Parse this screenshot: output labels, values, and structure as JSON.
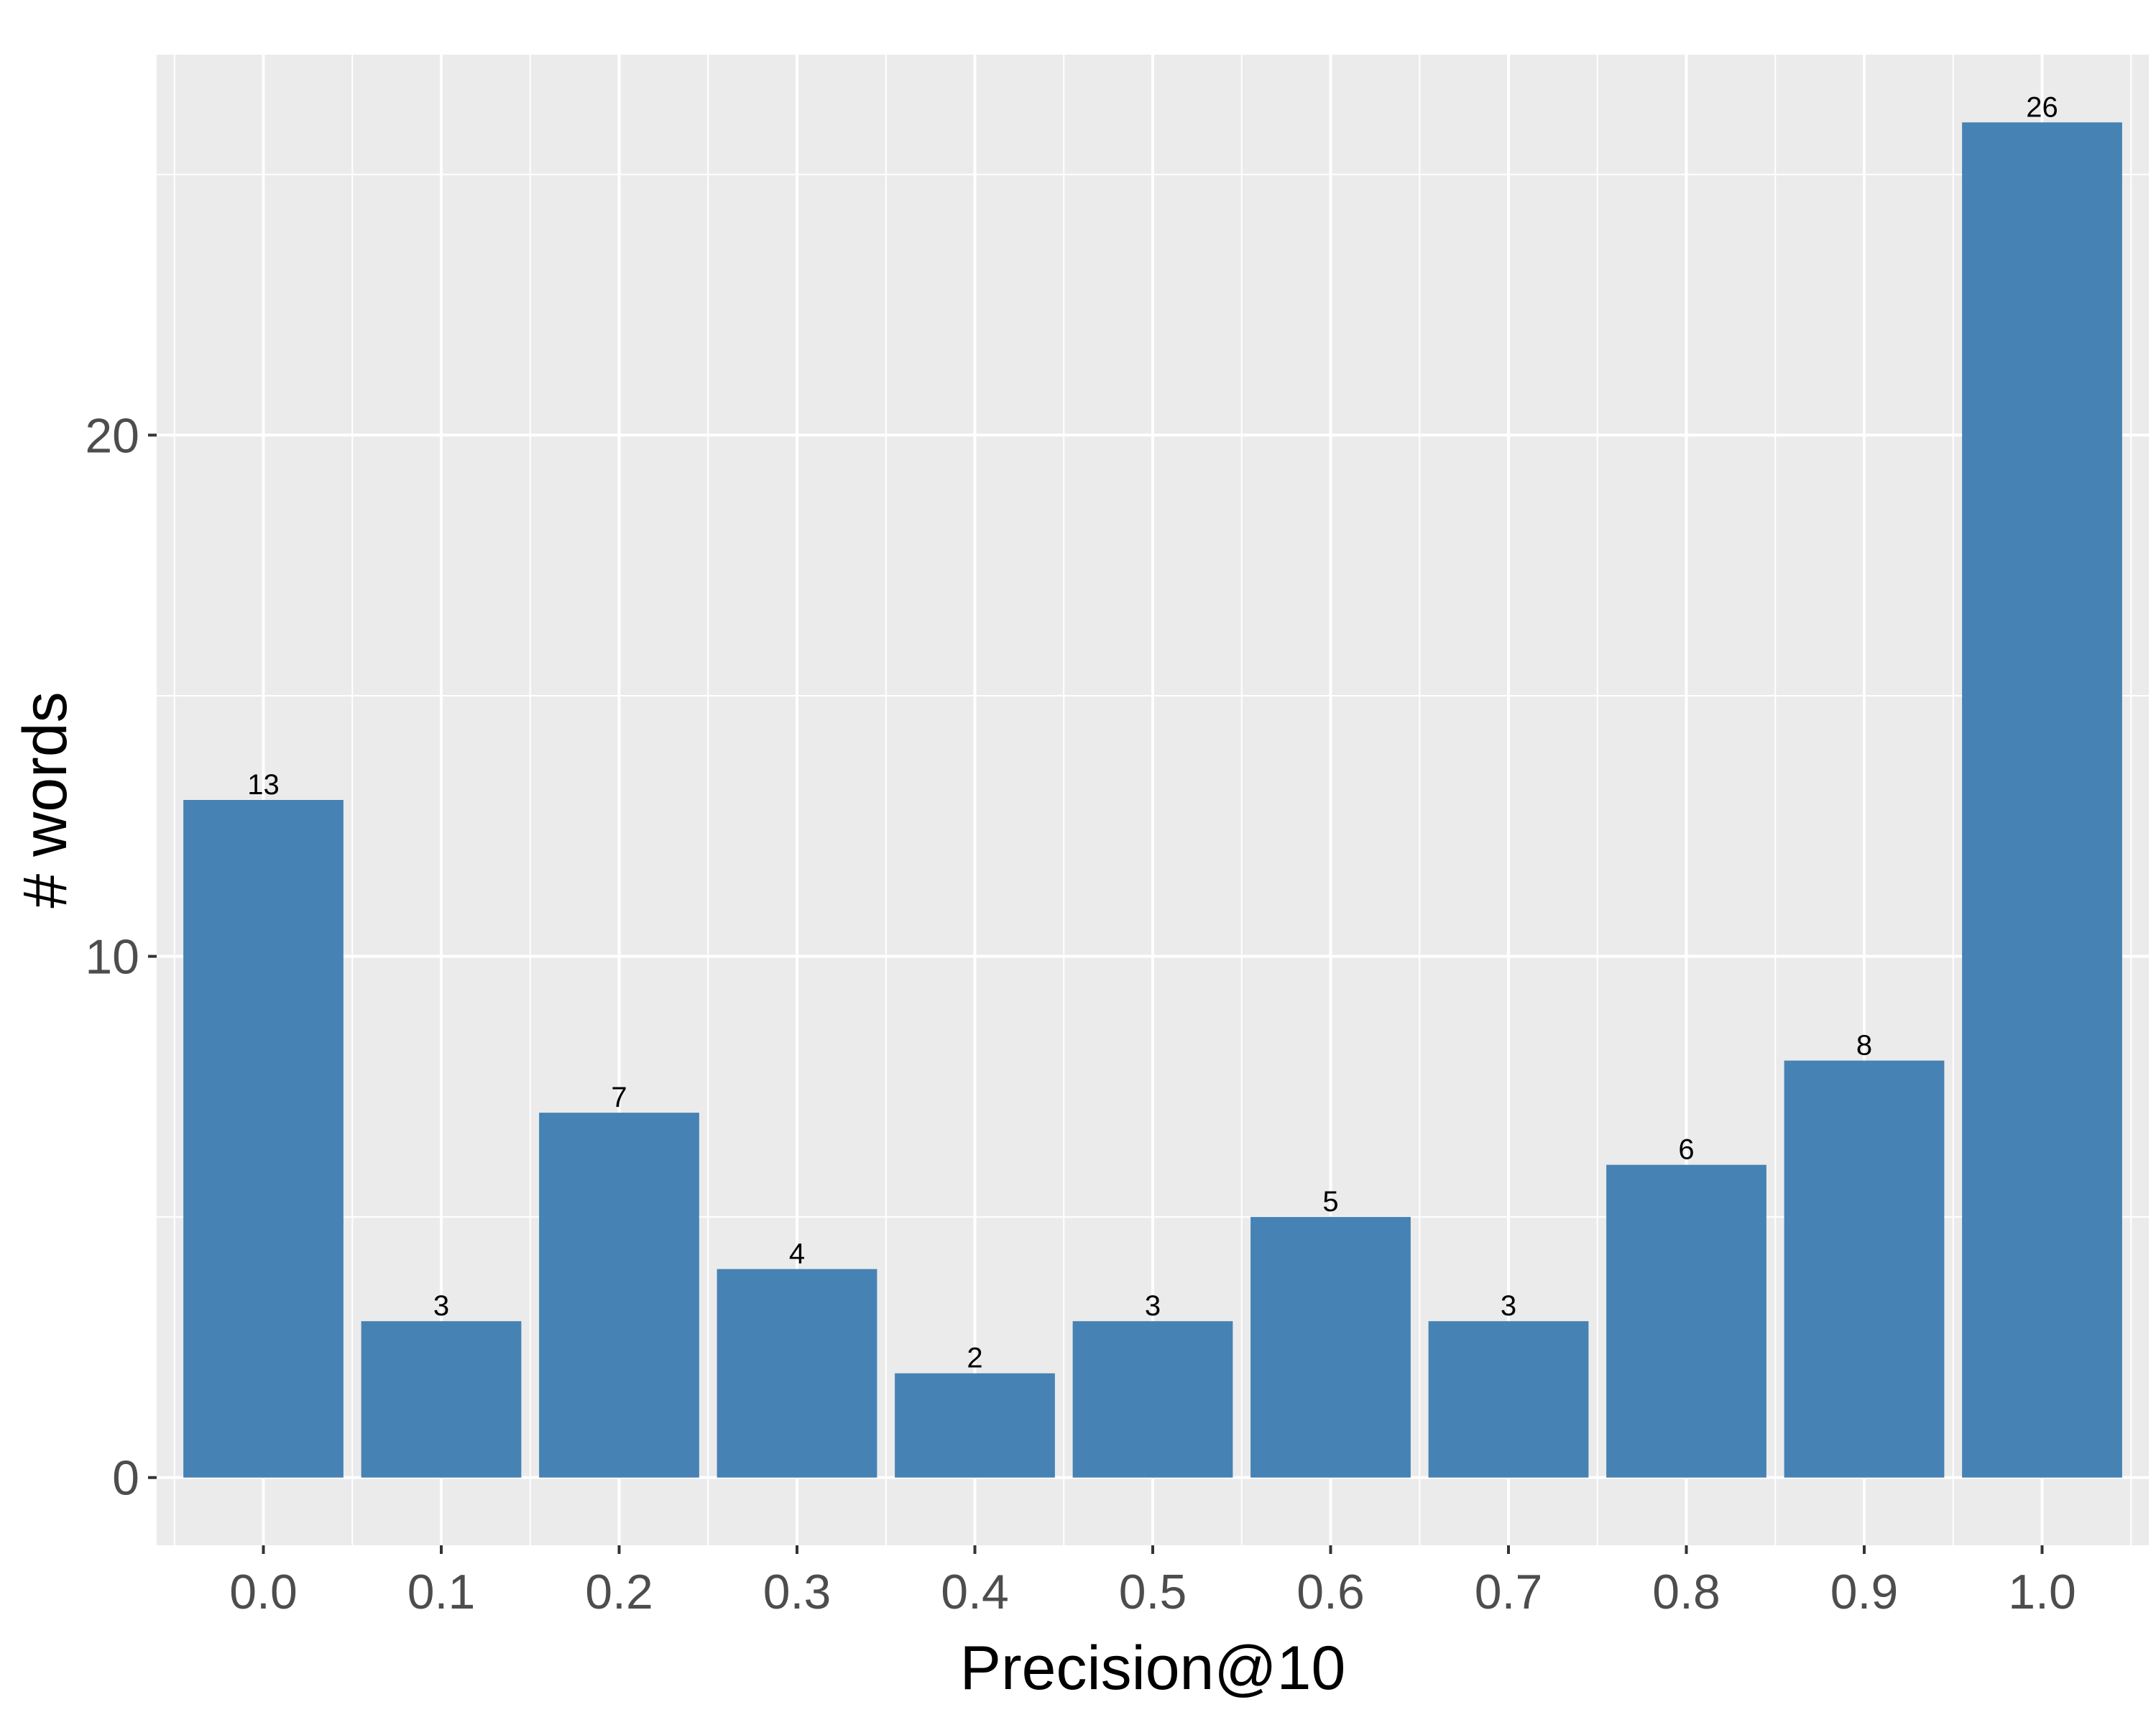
{
  "chart_data": {
    "type": "bar",
    "title": "",
    "xlabel": "Precision@10",
    "ylabel": "# words",
    "categories": [
      "0.0",
      "0.1",
      "0.2",
      "0.3",
      "0.4",
      "0.5",
      "0.6",
      "0.7",
      "0.8",
      "0.9",
      "1.0"
    ],
    "values": [
      13,
      3,
      7,
      4,
      2,
      3,
      5,
      3,
      6,
      8,
      26
    ],
    "data_labels": [
      "13",
      "3",
      "7",
      "4",
      "2",
      "3",
      "5",
      "3",
      "6",
      "8",
      "26"
    ],
    "ylim": [
      -1.3,
      27.3
    ],
    "y_ticks": [
      0,
      10,
      20
    ],
    "y_tick_labels": [
      "0",
      "10",
      "20"
    ],
    "grid": true,
    "legend": "none",
    "colors": {
      "bar": "#4682b4",
      "panel": "#ebebeb",
      "grid": "#ffffff",
      "tick_text": "#4d4d4d"
    }
  }
}
